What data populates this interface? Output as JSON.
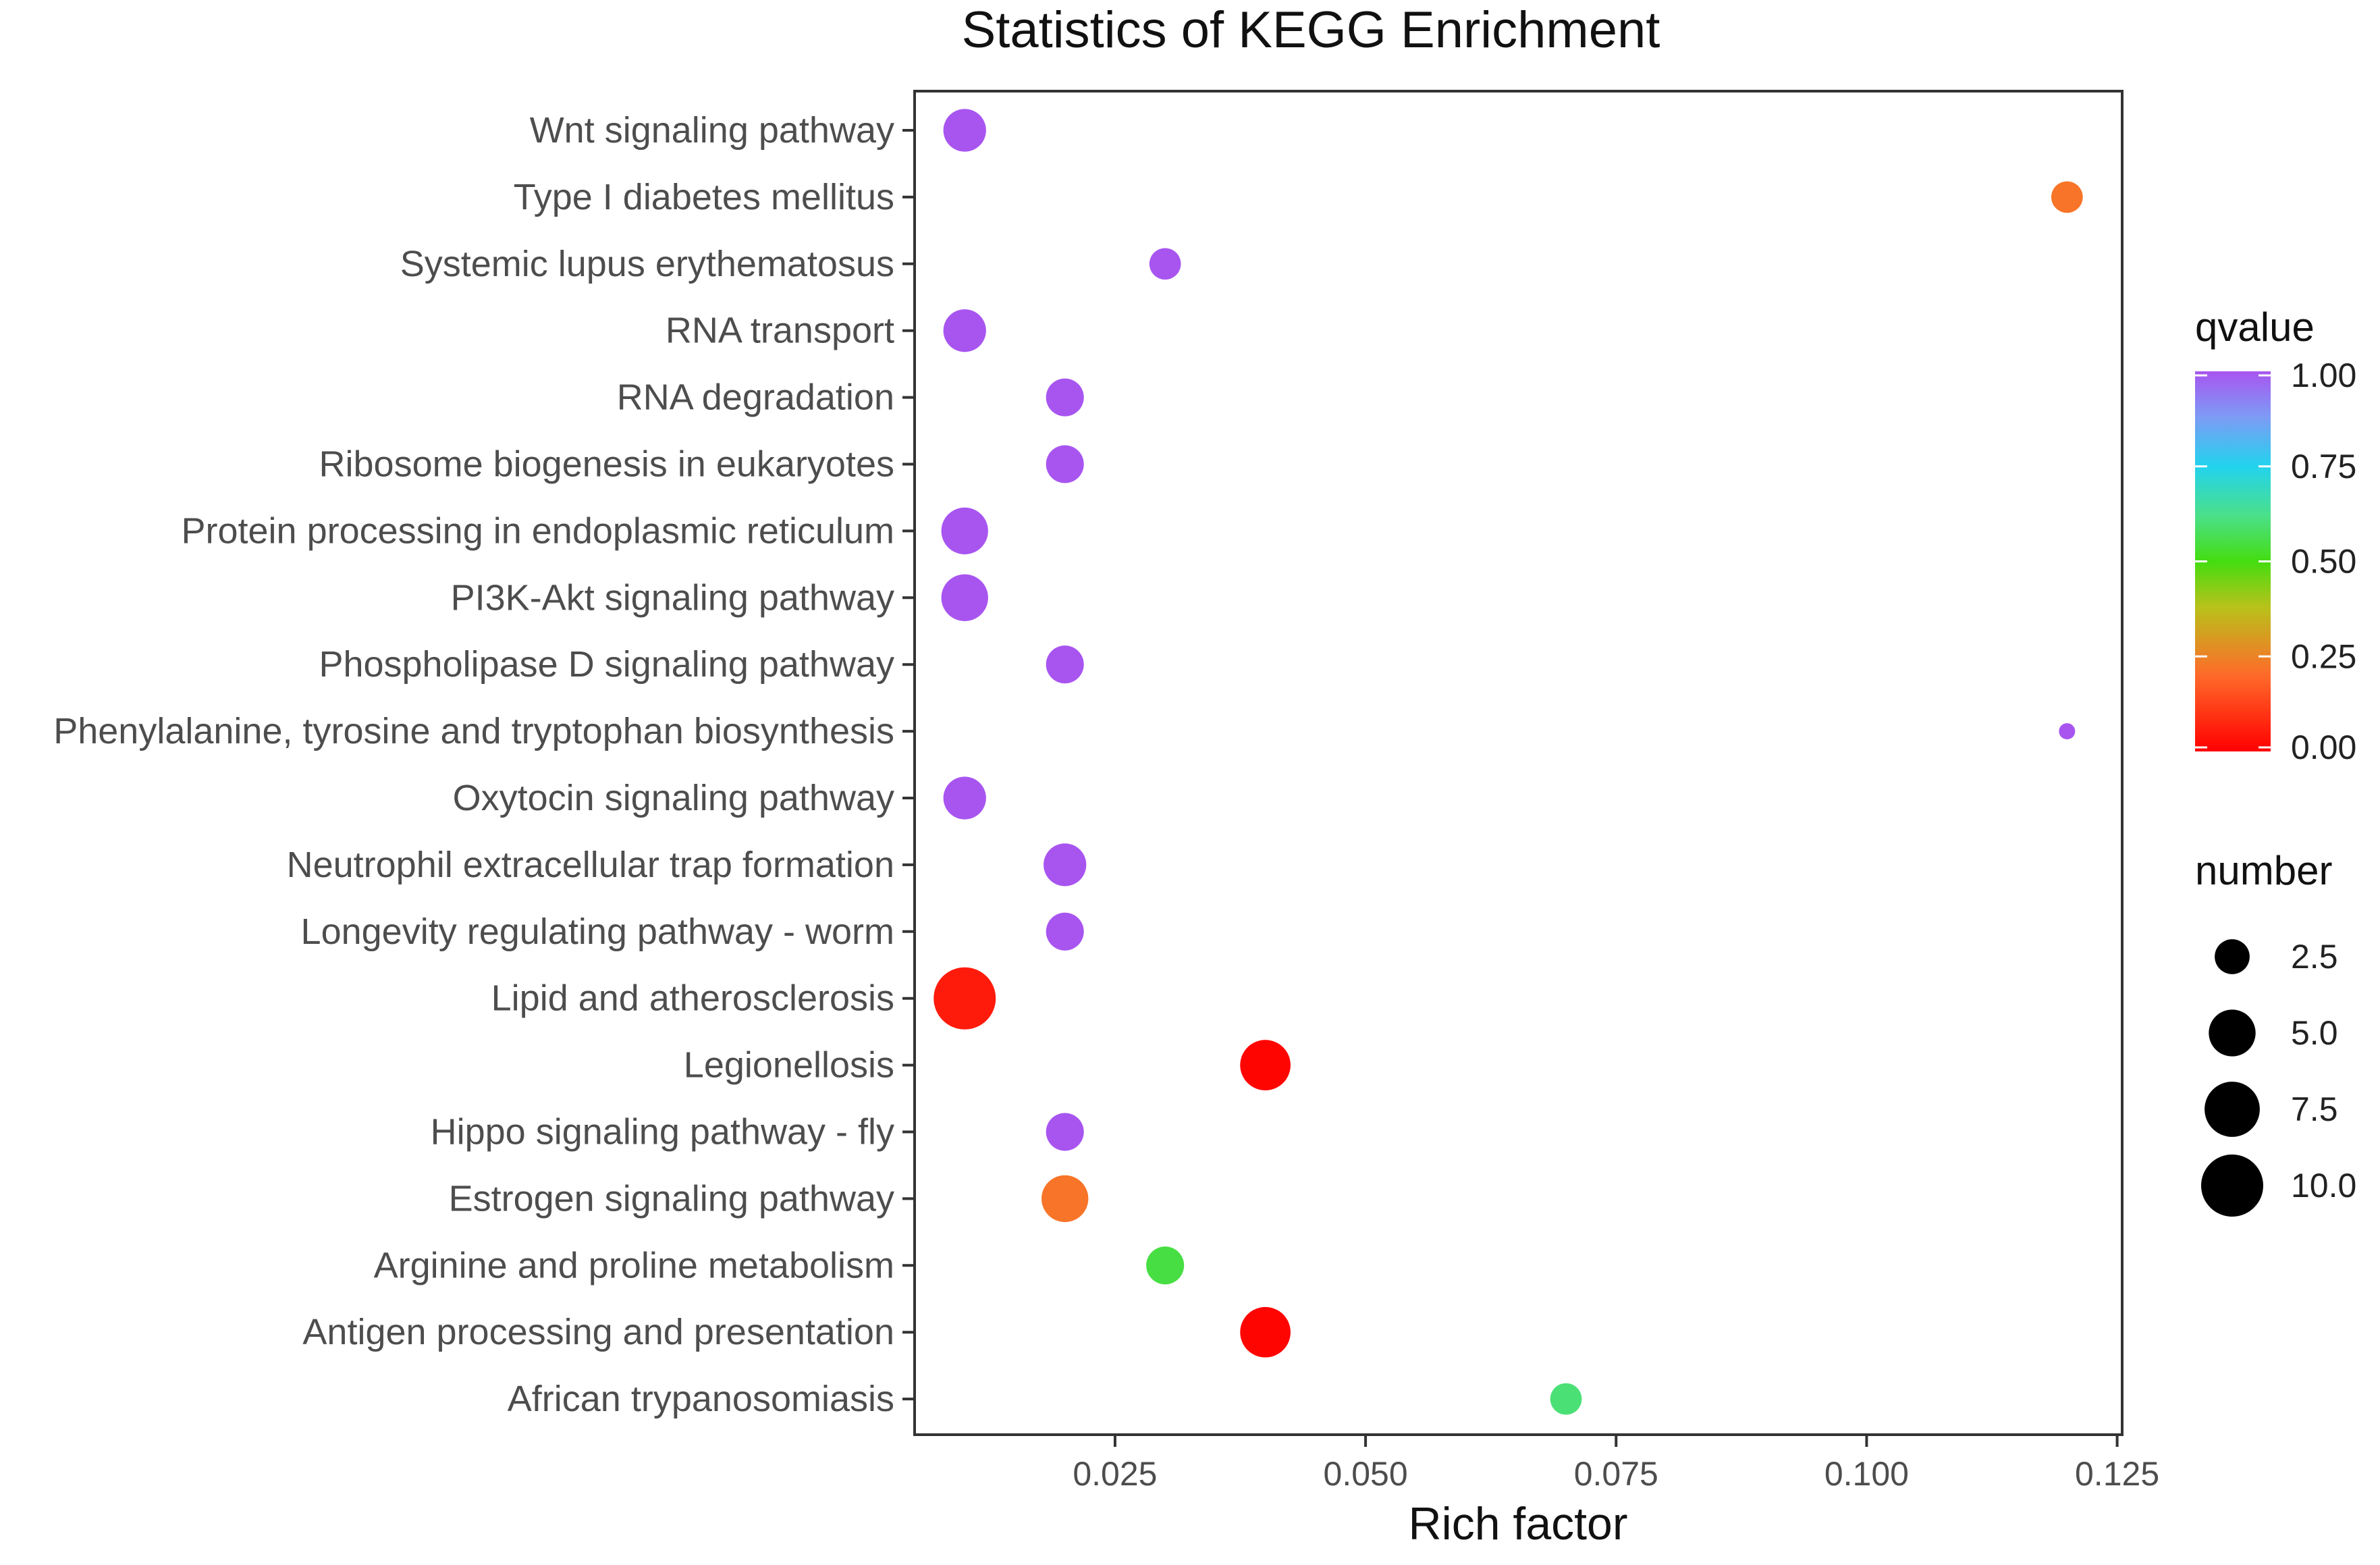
{
  "chart_data": {
    "type": "scatter",
    "title": "Statistics of KEGG Enrichment",
    "xlabel": "Rich factor",
    "ylabel": "",
    "xlim": [
      0.005,
      0.1255
    ],
    "x_ticks": [
      0.025,
      0.05,
      0.075,
      0.1,
      0.125
    ],
    "x_tick_labels": [
      "0.025",
      "0.050",
      "0.075",
      "0.100",
      "0.125"
    ],
    "grid": false,
    "legend_position": "right",
    "color_legend": {
      "title": "qvalue",
      "range": [
        0,
        1
      ],
      "ticks": [
        "1.00",
        "0.75",
        "0.50",
        "0.25",
        "0.00"
      ],
      "low_color": "#ff0000",
      "high_color": "#a855f0"
    },
    "size_legend": {
      "title": "number",
      "range": [
        1,
        10
      ],
      "ticks": [
        "2.5",
        "5.0",
        "7.5",
        "10.0"
      ],
      "tick_values": [
        2.5,
        5.0,
        7.5,
        10.0
      ]
    },
    "points": [
      {
        "term": "Wnt signaling pathway",
        "rich_factor": 0.01,
        "qvalue": 1.0,
        "number": 4
      },
      {
        "term": "Type I diabetes mellitus",
        "rich_factor": 0.12,
        "qvalue": 0.22,
        "number": 2
      },
      {
        "term": "Systemic lupus erythematosus",
        "rich_factor": 0.03,
        "qvalue": 1.0,
        "number": 2
      },
      {
        "term": "RNA transport",
        "rich_factor": 0.01,
        "qvalue": 1.0,
        "number": 4
      },
      {
        "term": "RNA degradation",
        "rich_factor": 0.02,
        "qvalue": 1.0,
        "number": 3
      },
      {
        "term": "Ribosome biogenesis in eukaryotes",
        "rich_factor": 0.02,
        "qvalue": 1.0,
        "number": 3
      },
      {
        "term": "Protein processing in endoplasmic reticulum",
        "rich_factor": 0.01,
        "qvalue": 1.0,
        "number": 5
      },
      {
        "term": "PI3K-Akt signaling pathway",
        "rich_factor": 0.01,
        "qvalue": 1.0,
        "number": 5
      },
      {
        "term": "Phospholipase D signaling pathway",
        "rich_factor": 0.02,
        "qvalue": 1.0,
        "number": 3
      },
      {
        "term": "Phenylalanine, tyrosine and tryptophan biosynthesis",
        "rich_factor": 0.12,
        "qvalue": 1.0,
        "number": 1
      },
      {
        "term": "Oxytocin signaling pathway",
        "rich_factor": 0.01,
        "qvalue": 1.0,
        "number": 4
      },
      {
        "term": "Neutrophil extracellular trap formation",
        "rich_factor": 0.02,
        "qvalue": 1.0,
        "number": 4
      },
      {
        "term": "Longevity regulating pathway - worm",
        "rich_factor": 0.02,
        "qvalue": 1.0,
        "number": 3
      },
      {
        "term": "Lipid and atherosclerosis",
        "rich_factor": 0.01,
        "qvalue": 0.05,
        "number": 10
      },
      {
        "term": "Legionellosis",
        "rich_factor": 0.04,
        "qvalue": 0.01,
        "number": 6
      },
      {
        "term": "Hippo signaling pathway - fly",
        "rich_factor": 0.02,
        "qvalue": 1.0,
        "number": 3
      },
      {
        "term": "Estrogen signaling pathway",
        "rich_factor": 0.02,
        "qvalue": 0.22,
        "number": 5
      },
      {
        "term": "Arginine and proline metabolism",
        "rich_factor": 0.03,
        "qvalue": 0.55,
        "number": 3
      },
      {
        "term": "Antigen processing and presentation",
        "rich_factor": 0.04,
        "qvalue": 0.01,
        "number": 6
      },
      {
        "term": "African trypanosomiasis",
        "rich_factor": 0.07,
        "qvalue": 0.6,
        "number": 2
      }
    ]
  }
}
